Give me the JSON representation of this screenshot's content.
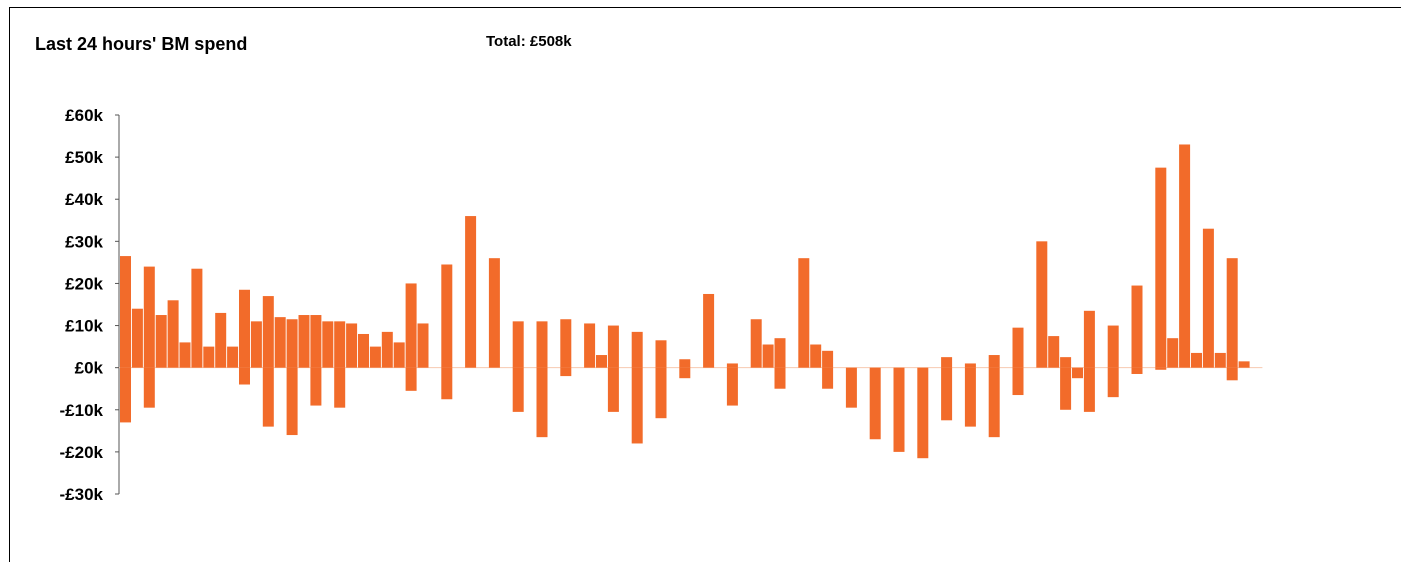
{
  "title": "Last 24 hours' BM spend",
  "total": "Total: £508k",
  "colors": {
    "bar": "#f26b2a",
    "axis": "#555555"
  },
  "chart_data": {
    "type": "bar",
    "title": "Last 24 hours' BM spend",
    "ylabel": "",
    "xlabel": "",
    "ylim": [
      -30,
      60
    ],
    "y_unit": "£k",
    "yticks": [
      {
        "value": 60,
        "label": "£60k"
      },
      {
        "value": 50,
        "label": "£50k"
      },
      {
        "value": 40,
        "label": "£40k"
      },
      {
        "value": 30,
        "label": "£30k"
      },
      {
        "value": 20,
        "label": "£20k"
      },
      {
        "value": 10,
        "label": "£10k"
      },
      {
        "value": 0,
        "label": "£0k"
      },
      {
        "value": -10,
        "label": "-£10k"
      },
      {
        "value": -20,
        "label": "-£20k"
      },
      {
        "value": -30,
        "label": "-£30k"
      }
    ],
    "x_slots": 96,
    "bars": [
      {
        "i": 0,
        "pos": 26.5,
        "neg": -13
      },
      {
        "i": 1,
        "pos": 14,
        "neg": 0
      },
      {
        "i": 2,
        "pos": 24,
        "neg": -9.5
      },
      {
        "i": 3,
        "pos": 12.5,
        "neg": 0
      },
      {
        "i": 4,
        "pos": 16,
        "neg": 0
      },
      {
        "i": 5,
        "pos": 6,
        "neg": 0
      },
      {
        "i": 6,
        "pos": 23.5,
        "neg": 0
      },
      {
        "i": 7,
        "pos": 5,
        "neg": 0
      },
      {
        "i": 8,
        "pos": 13,
        "neg": 0
      },
      {
        "i": 9,
        "pos": 5,
        "neg": 0
      },
      {
        "i": 10,
        "pos": 18.5,
        "neg": -4
      },
      {
        "i": 11,
        "pos": 11,
        "neg": 0
      },
      {
        "i": 12,
        "pos": 17,
        "neg": -14
      },
      {
        "i": 13,
        "pos": 12,
        "neg": 0
      },
      {
        "i": 14,
        "pos": 11.5,
        "neg": -16
      },
      {
        "i": 15,
        "pos": 12.5,
        "neg": 0
      },
      {
        "i": 16,
        "pos": 12.5,
        "neg": -9
      },
      {
        "i": 17,
        "pos": 11,
        "neg": 0
      },
      {
        "i": 18,
        "pos": 11,
        "neg": -9.5
      },
      {
        "i": 19,
        "pos": 10.5,
        "neg": 0
      },
      {
        "i": 20,
        "pos": 8,
        "neg": 0
      },
      {
        "i": 21,
        "pos": 5,
        "neg": 0
      },
      {
        "i": 22,
        "pos": 8.5,
        "neg": 0
      },
      {
        "i": 23,
        "pos": 6,
        "neg": 0
      },
      {
        "i": 24,
        "pos": 20,
        "neg": -5.5
      },
      {
        "i": 25,
        "pos": 10.5,
        "neg": 0
      },
      {
        "i": 27,
        "pos": 24.5,
        "neg": -7.5
      },
      {
        "i": 29,
        "pos": 36,
        "neg": 0
      },
      {
        "i": 31,
        "pos": 26,
        "neg": 0
      },
      {
        "i": 33,
        "pos": 11,
        "neg": -10.5
      },
      {
        "i": 35,
        "pos": 11,
        "neg": -16.5
      },
      {
        "i": 37,
        "pos": 11.5,
        "neg": -2
      },
      {
        "i": 39,
        "pos": 10.5,
        "neg": 0
      },
      {
        "i": 40,
        "pos": 3,
        "neg": 0
      },
      {
        "i": 41,
        "pos": 10,
        "neg": -10.5
      },
      {
        "i": 43,
        "pos": 8.5,
        "neg": -18
      },
      {
        "i": 45,
        "pos": 6.5,
        "neg": -12
      },
      {
        "i": 47,
        "pos": 2,
        "neg": -2.5
      },
      {
        "i": 49,
        "pos": 17.5,
        "neg": 0
      },
      {
        "i": 51,
        "pos": 1,
        "neg": -9
      },
      {
        "i": 53,
        "pos": 11.5,
        "neg": 0
      },
      {
        "i": 54,
        "pos": 5.5,
        "neg": 0
      },
      {
        "i": 55,
        "pos": 7,
        "neg": -5
      },
      {
        "i": 57,
        "pos": 26,
        "neg": 0
      },
      {
        "i": 58,
        "pos": 5.5,
        "neg": 0
      },
      {
        "i": 59,
        "pos": 4,
        "neg": -5
      },
      {
        "i": 61,
        "pos": 0,
        "neg": -9.5
      },
      {
        "i": 63,
        "pos": 0,
        "neg": -17
      },
      {
        "i": 65,
        "pos": 0,
        "neg": -20
      },
      {
        "i": 67,
        "pos": 0,
        "neg": -21.5
      },
      {
        "i": 69,
        "pos": 2.5,
        "neg": -12.5
      },
      {
        "i": 71,
        "pos": 1,
        "neg": -14
      },
      {
        "i": 73,
        "pos": 3,
        "neg": -16.5
      },
      {
        "i": 75,
        "pos": 9.5,
        "neg": -6.5
      },
      {
        "i": 77,
        "pos": 30,
        "neg": 0
      },
      {
        "i": 78,
        "pos": 7.5,
        "neg": 0
      },
      {
        "i": 79,
        "pos": 2.5,
        "neg": -10
      },
      {
        "i": 80,
        "pos": 0,
        "neg": -2.5
      },
      {
        "i": 81,
        "pos": 13.5,
        "neg": -10.5
      },
      {
        "i": 83,
        "pos": 10,
        "neg": -7
      },
      {
        "i": 85,
        "pos": 19.5,
        "neg": -1.5
      },
      {
        "i": 87,
        "pos": 47.5,
        "neg": -0.5
      },
      {
        "i": 88,
        "pos": 7,
        "neg": 0
      },
      {
        "i": 89,
        "pos": 53,
        "neg": 0
      },
      {
        "i": 90,
        "pos": 3.5,
        "neg": 0
      },
      {
        "i": 91,
        "pos": 33,
        "neg": 0
      },
      {
        "i": 92,
        "pos": 3.5,
        "neg": 0
      },
      {
        "i": 93,
        "pos": 26,
        "neg": -3
      },
      {
        "i": 94,
        "pos": 1.5,
        "neg": 0
      }
    ]
  }
}
